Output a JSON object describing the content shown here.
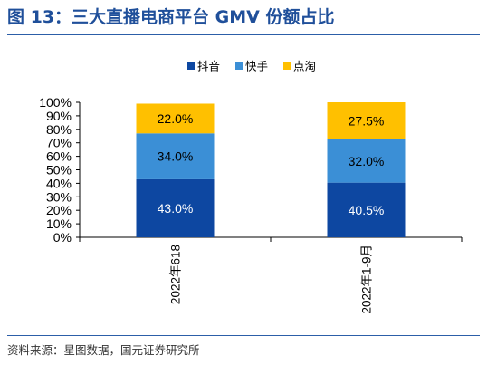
{
  "header": {
    "title": "图 13：三大直播电商平台 GMV 份额占比"
  },
  "footer": {
    "source": "资料来源：星图数据，国元证券研究所"
  },
  "chart_data": {
    "type": "bar",
    "stacked": true,
    "categories": [
      "2022年618",
      "2022年1-9月"
    ],
    "series": [
      {
        "name": "抖音",
        "values": [
          43.0,
          40.5
        ],
        "color": "#0d47a1",
        "label_color": "#ffffff"
      },
      {
        "name": "快手",
        "values": [
          34.0,
          32.0
        ],
        "color": "#3b8fd6",
        "label_color": "#000000"
      },
      {
        "name": "点淘",
        "values": [
          22.0,
          27.5
        ],
        "color": "#ffc000",
        "label_color": "#000000"
      }
    ],
    "value_labels": [
      [
        "43.0%",
        "40.5%"
      ],
      [
        "34.0%",
        "32.0%"
      ],
      [
        "22.0%",
        "27.5%"
      ]
    ],
    "yticks": [
      "0%",
      "10%",
      "20%",
      "30%",
      "40%",
      "50%",
      "60%",
      "70%",
      "80%",
      "90%",
      "100%"
    ],
    "ylim": [
      0,
      100
    ],
    "legend_position": "top",
    "grid": false,
    "xlabel": "",
    "ylabel": ""
  }
}
